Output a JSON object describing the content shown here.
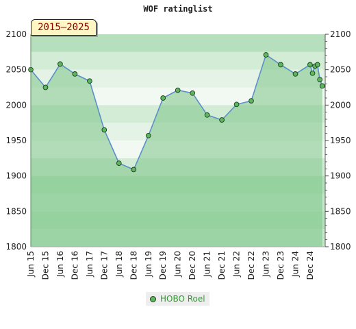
{
  "chart_data": {
    "type": "line",
    "title": "WOF ratinglist",
    "badge": "2015–2025",
    "ylim": [
      1800,
      2100
    ],
    "yticks": [
      1800,
      1850,
      1900,
      1950,
      2000,
      2050,
      2100
    ],
    "x_tick_labels": [
      "Jun 15",
      "Dec 15",
      "Jun 16",
      "Dec 16",
      "Jun 17",
      "Dec 17",
      "Jun 18",
      "Dec 18",
      "Jun 19",
      "Dec 19",
      "Jun 20",
      "Dec 20",
      "Jun 21",
      "Dec 21",
      "Jun 22",
      "Dec 22",
      "Jun 23",
      "Dec 23",
      "Jun 24",
      "Dec 24"
    ],
    "grid": true,
    "legend_position": "bottom-center",
    "series": [
      {
        "name": "HOBO Roel",
        "points": [
          {
            "x": "Jun 15",
            "y": 2050
          },
          {
            "x": "Dec 15",
            "y": 2025
          },
          {
            "x": "Jun 16",
            "y": 2058
          },
          {
            "x": "Dec 16",
            "y": 2044
          },
          {
            "x": "Jun 17",
            "y": 2034
          },
          {
            "x": "Dec 17",
            "y": 1965
          },
          {
            "x": "Jun 18",
            "y": 1918
          },
          {
            "x": "Dec 18",
            "y": 1909
          },
          {
            "x": "Jun 19",
            "y": 1957
          },
          {
            "x": "Dec 19",
            "y": 2010
          },
          {
            "x": "Jun 20",
            "y": 2021
          },
          {
            "x": "Dec 20",
            "y": 2017
          },
          {
            "x": "Jun 21",
            "y": 1986
          },
          {
            "x": "Dec 21",
            "y": 1979
          },
          {
            "x": "Jun 22",
            "y": 2001
          },
          {
            "x": "Dec 22",
            "y": 2006
          },
          {
            "x": "Jun 23",
            "y": 2071
          },
          {
            "x": "Dec 23",
            "y": 2057
          },
          {
            "x": "Jun 24",
            "y": 2044
          },
          {
            "x": "Dec 24",
            "y": 2057
          },
          {
            "x": "Jan 25",
            "y": 2045
          },
          {
            "x": "Feb 25",
            "y": 2055
          },
          {
            "x": "Mar 25",
            "y": 2057
          },
          {
            "x": "Apr 25",
            "y": 2036
          },
          {
            "x": "May 25",
            "y": 2027
          }
        ]
      }
    ],
    "colors": {
      "line": "#5b8fc9",
      "area": "#7cc487",
      "marker": "#5cb85c",
      "marker_edge": "#1f3b1f",
      "band_light": "#c8e6cc",
      "band_mid": "#9fd4a8",
      "band_dark": "#77c08a",
      "badge_text": "#8b0000",
      "legend_text": "#2e9c2e"
    }
  }
}
